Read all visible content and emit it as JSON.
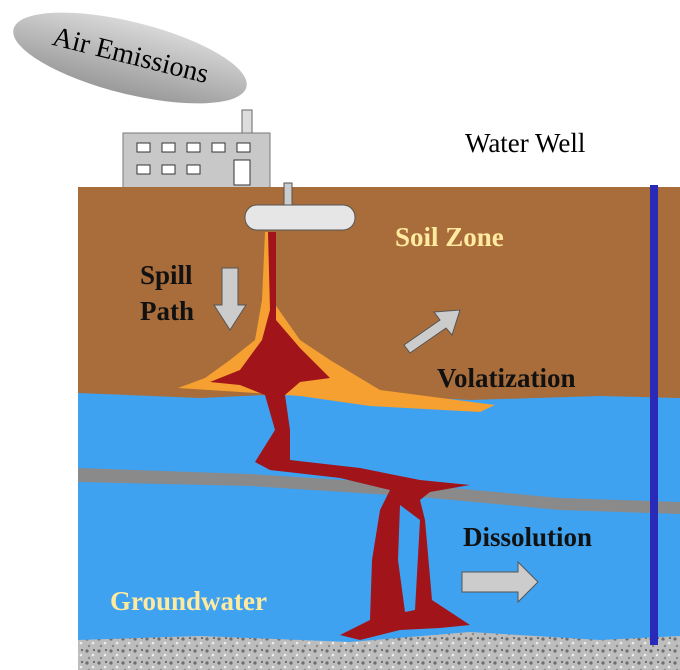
{
  "labels": {
    "air_emissions": "Air Emissions",
    "water_well": "Water Well",
    "soil_zone": "Soil Zone",
    "spill_path": [
      "Spill",
      "Path"
    ],
    "volatization": "Volatization",
    "dissolution": "Dissolution",
    "groundwater": "Groundwater"
  }
}
